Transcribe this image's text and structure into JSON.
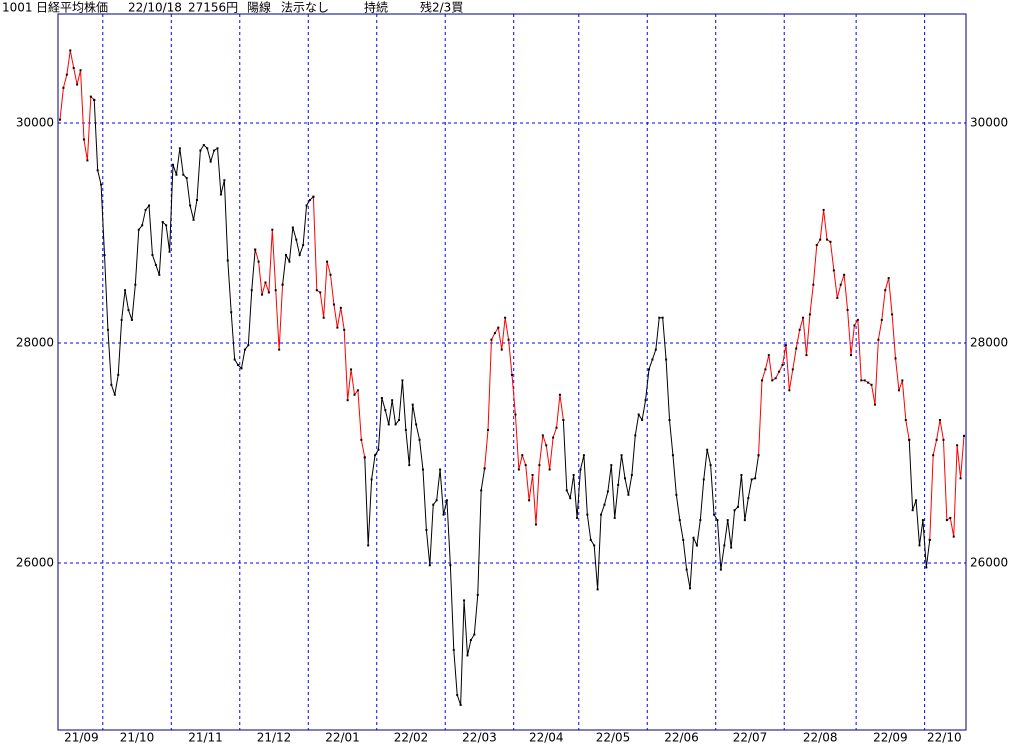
{
  "header": {
    "code": "1001",
    "name": "日経平均株価",
    "date": "22/10/18",
    "price": "27156円",
    "candle": "陽線",
    "display": "法示なし",
    "trend": "持続",
    "signal": "残2/3買"
  },
  "chart_data": {
    "type": "line",
    "xlim": [
      0,
      264
    ],
    "xticks": [
      {
        "value": 0,
        "label": "21/09"
      },
      {
        "value": 12.5,
        "label": "21/10"
      },
      {
        "value": 32.5,
        "label": "21/11"
      },
      {
        "value": 52.5,
        "label": "21/12"
      },
      {
        "value": 72.5,
        "label": "22/01"
      },
      {
        "value": 92.5,
        "label": "22/02"
      },
      {
        "value": 112.5,
        "label": "22/03"
      },
      {
        "value": 132.5,
        "label": "22/04"
      },
      {
        "value": 151.5,
        "label": "22/05"
      },
      {
        "value": 171.5,
        "label": "22/06"
      },
      {
        "value": 191.5,
        "label": "22/07"
      },
      {
        "value": 211.5,
        "label": "22/08"
      },
      {
        "value": 232.5,
        "label": "22/09"
      },
      {
        "value": 252.5,
        "label": "22/10"
      }
    ],
    "ylim": [
      24482,
      30991
    ],
    "yticks": [
      26000,
      28000,
      30000
    ],
    "grid": true,
    "series": [
      {
        "color": "#ff0000",
        "values": [
          30030,
          30320,
          30440,
          30660,
          30500,
          30350,
          30480,
          29850,
          29660,
          30240,
          30210,
          null,
          null,
          null,
          null,
          null,
          null,
          null,
          null,
          null,
          null,
          null,
          null,
          null,
          null,
          null,
          null,
          null,
          null,
          null,
          null,
          null,
          null,
          null,
          null,
          null,
          null,
          null,
          null,
          null,
          null,
          null,
          null,
          null,
          null,
          null,
          null,
          null,
          null,
          null,
          null,
          null,
          null,
          null,
          null,
          null,
          null,
          28850,
          28740,
          28440,
          28550,
          28460,
          29030,
          28480,
          27940,
          28530,
          null,
          null,
          null,
          null,
          null,
          null,
          null,
          null,
          29330,
          28480,
          28460,
          28230,
          28740,
          28620,
          28350,
          28140,
          28320,
          28120,
          27480,
          27760,
          27530,
          27570,
          27120,
          26960,
          null,
          null,
          null,
          null,
          null,
          null,
          null,
          null,
          null,
          null,
          null,
          null,
          null,
          null,
          null,
          null,
          null,
          null,
          null,
          null,
          null,
          null,
          null,
          null,
          null,
          null,
          null,
          null,
          null,
          null,
          null,
          null,
          null,
          null,
          26860,
          27210,
          28030,
          28090,
          28140,
          27940,
          28230,
          28030,
          27710,
          27350,
          26850,
          26980,
          26890,
          26570,
          26800,
          26350,
          26890,
          27160,
          27070,
          26850,
          27140,
          27230,
          27530,
          27300,
          null,
          null,
          null,
          null,
          null,
          null,
          null,
          null,
          null,
          null,
          null,
          null,
          null,
          null,
          null,
          null,
          null,
          null,
          null,
          null,
          null,
          null,
          null,
          null,
          null,
          null,
          null,
          null,
          null,
          null,
          null,
          null,
          null,
          null,
          null,
          null,
          null,
          null,
          null,
          null,
          null,
          null,
          null,
          null,
          null,
          null,
          null,
          null,
          null,
          null,
          null,
          null,
          null,
          null,
          null,
          null,
          26980,
          27660,
          27760,
          27890,
          27660,
          27680,
          27740,
          27800,
          27980,
          27570,
          27760,
          27950,
          28120,
          28230,
          27890,
          28260,
          28530,
          28890,
          28940,
          29210,
          28940,
          28920,
          28660,
          28410,
          28530,
          28620,
          28300,
          27890,
          28160,
          28210,
          27660,
          27660,
          27640,
          27620,
          27440,
          28030,
          28210,
          28480,
          28590,
          28260,
          27860,
          27570,
          27660,
          27300,
          27120,
          null,
          null,
          null,
          null,
          null,
          26210,
          26980,
          27120,
          27300,
          27120,
          26390,
          26410,
          26240,
          27070,
          26770,
          27156
        ]
      },
      {
        "color": "#000000",
        "values": [
          null,
          null,
          null,
          null,
          null,
          null,
          null,
          null,
          null,
          null,
          30210,
          29570,
          29440,
          28800,
          28120,
          27620,
          27530,
          27710,
          28210,
          28480,
          28300,
          28210,
          28530,
          29030,
          29070,
          29210,
          29250,
          28800,
          28710,
          28620,
          29100,
          29070,
          28830,
          29620,
          29530,
          29770,
          29530,
          29500,
          29250,
          29120,
          29300,
          29750,
          29800,
          29770,
          29650,
          29750,
          29770,
          29350,
          29480,
          28750,
          28280,
          27850,
          27800,
          27770,
          27940,
          27980,
          28480,
          28850,
          null,
          null,
          null,
          null,
          null,
          null,
          null,
          28530,
          28800,
          28740,
          29050,
          28940,
          28800,
          28890,
          29250,
          29300,
          29330,
          null,
          null,
          null,
          null,
          null,
          null,
          null,
          null,
          null,
          null,
          null,
          null,
          null,
          null,
          26960,
          26160,
          26760,
          26980,
          27030,
          27500,
          27390,
          27260,
          27480,
          27260,
          27300,
          27660,
          27210,
          26890,
          27440,
          27260,
          27120,
          26850,
          26300,
          25980,
          26530,
          26570,
          26850,
          26440,
          26570,
          25980,
          25210,
          24800,
          24710,
          25660,
          25160,
          25300,
          25350,
          25710,
          26660,
          26860,
          null,
          null,
          null,
          null,
          null,
          null,
          null,
          null,
          null,
          null,
          null,
          null,
          null,
          null,
          null,
          null,
          null,
          null,
          null,
          null,
          null,
          null,
          27300,
          26660,
          26590,
          26800,
          26410,
          26850,
          26980,
          26440,
          26210,
          26160,
          25760,
          26440,
          26530,
          26650,
          26890,
          26410,
          26710,
          26980,
          26770,
          26620,
          26800,
          27160,
          27350,
          27300,
          27480,
          27760,
          27850,
          27940,
          28230,
          28230,
          27850,
          27300,
          26980,
          26620,
          26390,
          26210,
          25940,
          25770,
          26230,
          26160,
          26390,
          26760,
          27030,
          26890,
          26440,
          26390,
          25940,
          26160,
          26390,
          26140,
          26480,
          26510,
          26800,
          26390,
          26590,
          26760,
          26770,
          26980,
          null,
          null,
          null,
          null,
          null,
          null,
          null,
          null,
          null,
          null,
          null,
          null,
          null,
          null,
          null,
          null,
          null,
          null,
          null,
          null,
          null,
          null,
          null,
          null,
          null,
          null,
          null,
          null,
          null,
          null,
          null,
          null,
          null,
          null,
          null,
          null,
          null,
          null,
          null,
          null,
          null,
          null,
          null,
          27120,
          26480,
          26570,
          26160,
          26390,
          25960,
          26210,
          null,
          null,
          null,
          null,
          null,
          null,
          null,
          null,
          null,
          null
        ]
      }
    ],
    "dot_color": "#000000",
    "frame_color": "#000080",
    "grid_color": "#0000ff"
  }
}
